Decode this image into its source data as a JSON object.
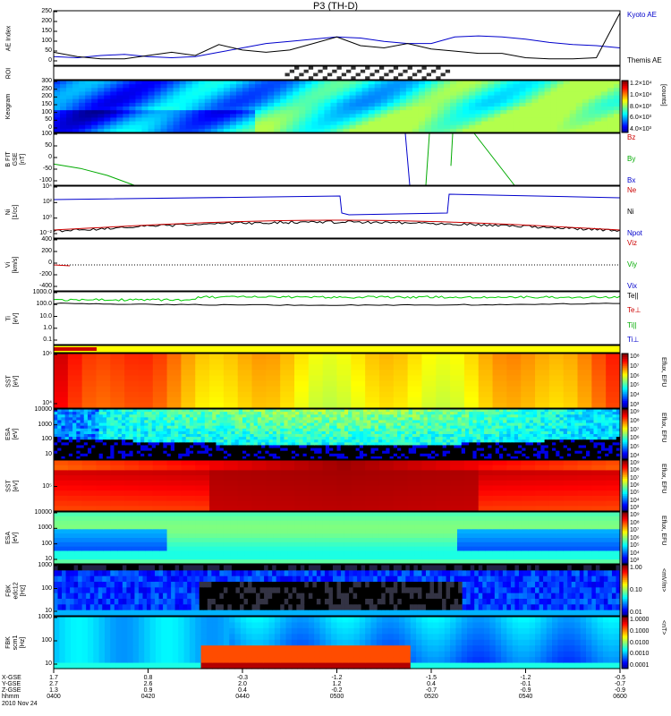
{
  "title": "P3 (TH-D)",
  "date": "2010 Nov 24",
  "x_rows": [
    {
      "label": "X-GSE",
      "values": [
        "1.7",
        "0.8",
        "-0.3",
        "-1.2",
        "-1.5",
        "-1.2",
        "-0.5"
      ]
    },
    {
      "label": "Y-GSE",
      "values": [
        "2.7",
        "2.6",
        "2.0",
        "1.2",
        "0.4",
        "-0.1",
        "-0.7"
      ]
    },
    {
      "label": "Z-GSE",
      "values": [
        "1.3",
        "0.9",
        "0.4",
        "-0.2",
        "-0.7",
        "-0.9",
        "-0.9"
      ]
    },
    {
      "label": "hhmm",
      "values": [
        "0400",
        "0420",
        "0440",
        "0500",
        "0520",
        "0540",
        "0600"
      ]
    }
  ],
  "chart_data": [
    {
      "type": "line",
      "panel": "ae",
      "ylabel": "AE Index",
      "yticks": [
        "250",
        "200",
        "150",
        "100",
        "50",
        "0"
      ],
      "ylim": [
        0,
        250
      ],
      "legend": [
        {
          "name": "Kyoto AE",
          "color": "#0000cc"
        },
        {
          "name": "Themis AE",
          "color": "#000000"
        }
      ],
      "x": [
        0,
        5,
        10,
        15,
        20,
        25,
        30,
        35,
        40,
        45,
        50,
        55,
        60,
        65,
        70,
        75,
        80,
        85,
        90,
        95,
        100,
        105,
        110,
        115,
        120
      ],
      "series": [
        {
          "name": "Kyoto AE",
          "color": "#0000cc",
          "values": [
            40,
            35,
            45,
            50,
            40,
            35,
            40,
            60,
            80,
            100,
            110,
            120,
            130,
            125,
            110,
            100,
            100,
            130,
            135,
            130,
            120,
            105,
            95,
            90,
            80
          ]
        },
        {
          "name": "Themis AE",
          "color": "#000000",
          "values": [
            60,
            40,
            30,
            30,
            45,
            60,
            45,
            95,
            70,
            60,
            70,
            100,
            130,
            90,
            80,
            100,
            75,
            65,
            55,
            55,
            35,
            30,
            30,
            35,
            240
          ]
        }
      ]
    },
    {
      "type": "heatmap",
      "panel": "roi",
      "ylabel": "ROI"
    },
    {
      "type": "heatmap",
      "panel": "keogram",
      "ylabel": "Keogram",
      "yticks": [
        "300",
        "250",
        "200",
        "150",
        "100",
        "50",
        "0"
      ],
      "colorbar": {
        "label": "[counts]",
        "ticks": [
          "1.2×10⁴",
          "1.0×10⁴",
          "8.0×10³",
          "6.0×10³",
          "4.0×10³"
        ]
      }
    },
    {
      "type": "line",
      "panel": "bfit",
      "ylabel": "B FIT\nGSE\n[nT]",
      "yticks": [
        "100",
        "50",
        "0",
        "-50",
        "-100"
      ],
      "ylim": [
        -100,
        100
      ],
      "legend": [
        {
          "name": "Bz",
          "color": "#cc0000"
        },
        {
          "name": "By",
          "color": "#00aa00"
        },
        {
          "name": "Bx",
          "color": "#0000cc"
        }
      ]
    },
    {
      "type": "line",
      "panel": "ni",
      "ylabel": "Ni\n[1/cc]",
      "yticks": [
        "10⁴",
        "10²",
        "10⁰",
        "10⁻²"
      ],
      "legend": [
        {
          "name": "Ne",
          "color": "#cc0000"
        },
        {
          "name": "Ni",
          "color": "#000000"
        },
        {
          "name": "Npot",
          "color": "#0000cc"
        }
      ]
    },
    {
      "type": "line",
      "panel": "vi",
      "ylabel": "Vi\n[km/s]",
      "yticks": [
        "400",
        "200",
        "0",
        "-200",
        "-400"
      ],
      "ylim": [
        -400,
        400
      ],
      "legend": [
        {
          "name": "Viz",
          "color": "#cc0000"
        },
        {
          "name": "Viy",
          "color": "#00aa00"
        },
        {
          "name": "Vix",
          "color": "#0000cc"
        }
      ]
    },
    {
      "type": "line",
      "panel": "ti",
      "ylabel": "Ti\n[eV]",
      "yticks": [
        "1000.0",
        "100.0",
        "10.0",
        "1.0",
        "0.1"
      ],
      "legend": [
        {
          "name": "Te||",
          "color": "#000000"
        },
        {
          "name": "Te⊥",
          "color": "#cc0000"
        },
        {
          "name": "Ti||",
          "color": "#00aa00"
        },
        {
          "name": "Ti⊥",
          "color": "#0000cc"
        }
      ]
    },
    {
      "type": "heatmap",
      "panel": "sst_e",
      "ylabel": "SST\n[eV]",
      "yticks": [
        "10⁶",
        "10⁴"
      ],
      "colorbar": {
        "label": "Eflux, EFU",
        "ticks": [
          "10⁸",
          "10⁷",
          "10⁶",
          "10⁵",
          "10⁴",
          "10³"
        ]
      }
    },
    {
      "type": "heatmap",
      "panel": "esa_e",
      "ylabel": "ESA\n[eV]",
      "yticks": [
        "10000",
        "1000",
        "100",
        "10"
      ],
      "colorbar": {
        "label": "Eflux, EFU",
        "ticks": [
          "10⁹",
          "10⁸",
          "10⁷",
          "10⁶",
          "10⁵",
          "10⁴"
        ]
      }
    },
    {
      "type": "heatmap",
      "panel": "sst_i",
      "ylabel": "SST\n[eV]",
      "yticks": [
        "10⁵"
      ],
      "colorbar": {
        "label": "Eflux, EFU",
        "ticks": [
          "10⁹",
          "10⁸",
          "10⁷",
          "10⁶",
          "10⁵",
          "10⁴",
          "10³"
        ]
      }
    },
    {
      "type": "heatmap",
      "panel": "esa_i",
      "ylabel": "ESA\n[eV]",
      "yticks": [
        "10000",
        "1000",
        "100",
        "10"
      ],
      "colorbar": {
        "label": "Eflux, EFU",
        "ticks": [
          "10⁹",
          "10⁸",
          "10⁷",
          "10⁶",
          "10⁵",
          "10⁴",
          "10³"
        ]
      }
    },
    {
      "type": "heatmap",
      "panel": "fbk_e",
      "ylabel": "FBK\nedc12\n[Hz]",
      "yticks": [
        "1000",
        "100",
        "10"
      ],
      "colorbar": {
        "label": "<mV/m>",
        "ticks": [
          "1.00",
          "0.10",
          "0.01"
        ]
      }
    },
    {
      "type": "heatmap",
      "panel": "fbk_b",
      "ylabel": "FBK\nscm1\n[Hz]",
      "yticks": [
        "1000",
        "100",
        "10"
      ],
      "colorbar": {
        "label": "<nT>",
        "ticks": [
          "1.0000",
          "0.1000",
          "0.0100",
          "0.0010",
          "0.0001"
        ]
      }
    }
  ]
}
